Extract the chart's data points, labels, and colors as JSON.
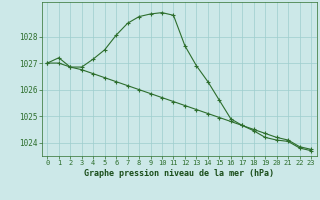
{
  "line1_x": [
    0,
    1,
    2,
    3,
    4,
    5,
    6,
    7,
    8,
    9,
    10,
    11,
    12,
    13,
    14,
    15,
    16,
    17,
    18,
    19,
    20,
    21,
    22,
    23
  ],
  "line1_y": [
    1027.0,
    1027.2,
    1026.85,
    1026.85,
    1027.15,
    1027.5,
    1028.05,
    1028.5,
    1028.75,
    1028.85,
    1028.9,
    1028.8,
    1027.65,
    1026.9,
    1026.3,
    1025.6,
    1024.9,
    1024.65,
    1024.45,
    1024.2,
    1024.1,
    1024.05,
    1023.8,
    1023.7
  ],
  "line2_x": [
    0,
    1,
    2,
    3,
    4,
    5,
    6,
    7,
    8,
    9,
    10,
    11,
    12,
    13,
    14,
    15,
    16,
    17,
    18,
    19,
    20,
    21,
    22,
    23
  ],
  "line2_y": [
    1027.0,
    1027.0,
    1026.85,
    1026.75,
    1026.6,
    1026.45,
    1026.3,
    1026.15,
    1026.0,
    1025.85,
    1025.7,
    1025.55,
    1025.4,
    1025.25,
    1025.1,
    1024.95,
    1024.8,
    1024.65,
    1024.5,
    1024.35,
    1024.2,
    1024.1,
    1023.85,
    1023.75
  ],
  "line_color": "#2d6e2d",
  "bg_color": "#cce8e8",
  "grid_color": "#9ecece",
  "xlabel": "Graphe pression niveau de la mer (hPa)",
  "xlabel_color": "#1a4d1a",
  "tick_color": "#2d6e2d",
  "ylim": [
    1023.5,
    1029.3
  ],
  "xlim": [
    -0.5,
    23.5
  ],
  "yticks": [
    1024,
    1025,
    1026,
    1027,
    1028
  ],
  "xticks": [
    0,
    1,
    2,
    3,
    4,
    5,
    6,
    7,
    8,
    9,
    10,
    11,
    12,
    13,
    14,
    15,
    16,
    17,
    18,
    19,
    20,
    21,
    22,
    23
  ],
  "figwidth": 3.2,
  "figheight": 2.0,
  "dpi": 100
}
